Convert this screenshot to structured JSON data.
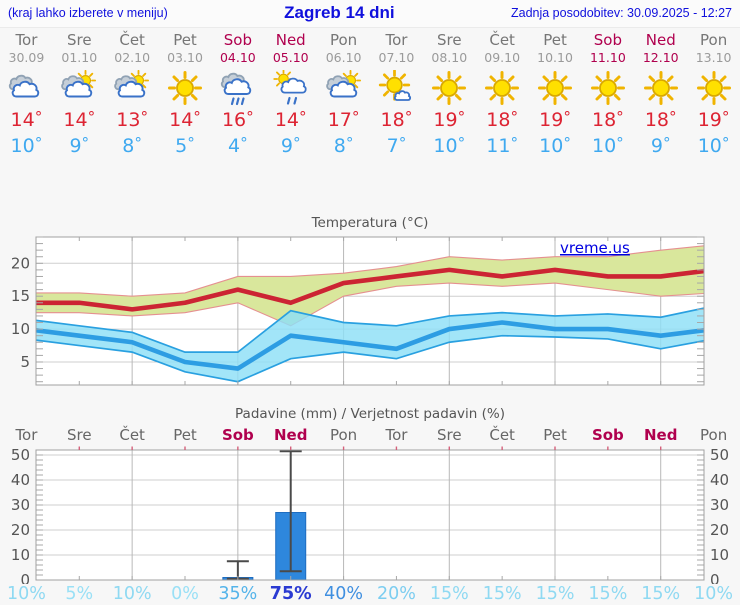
{
  "header": {
    "hint": "(kraj lahko izberete v meniju)",
    "title": "Zagreb 14 dni",
    "last_update": "Zadnja posodobitev: 30.09.2025 - 12:27"
  },
  "units": {
    "degree": "°"
  },
  "colors": {
    "header_blue": "#1010dd",
    "weekend_red": "#b0004e",
    "max_red": "#dd2433",
    "min_blue": "#3fa9f0",
    "bar_blue": "#2e87dd",
    "band_green": "#d9e79c",
    "band_cyan": "#8edff6"
  },
  "days": [
    {
      "name": "Tor",
      "date": "30.09",
      "weekend": false,
      "icon": "cloudy",
      "max": "14",
      "min": "10",
      "prob": "10%",
      "prob_color": "#8fd9f2",
      "prob_bold": false
    },
    {
      "name": "Sre",
      "date": "01.10",
      "weekend": false,
      "icon": "partly-cloudy",
      "max": "14",
      "min": "9",
      "prob": "5%",
      "prob_color": "#9ae0f6",
      "prob_bold": false
    },
    {
      "name": "Čet",
      "date": "02.10",
      "weekend": false,
      "icon": "partly-cloudy",
      "max": "13",
      "min": "8",
      "prob": "10%",
      "prob_color": "#8fd9f2",
      "prob_bold": false
    },
    {
      "name": "Pet",
      "date": "03.10",
      "weekend": false,
      "icon": "sunny",
      "max": "14",
      "min": "5",
      "prob": "0%",
      "prob_color": "#9ae0f6",
      "prob_bold": false
    },
    {
      "name": "Sob",
      "date": "04.10",
      "weekend": true,
      "icon": "rain",
      "max": "16",
      "min": "4",
      "prob": "35%",
      "prob_color": "#55b4ea",
      "prob_bold": false
    },
    {
      "name": "Ned",
      "date": "05.10",
      "weekend": true,
      "icon": "sun-shower",
      "max": "14",
      "min": "9",
      "prob": "75%",
      "prob_color": "#2a3ad2",
      "prob_bold": true
    },
    {
      "name": "Pon",
      "date": "06.10",
      "weekend": false,
      "icon": "partly-cloudy",
      "max": "17",
      "min": "8",
      "prob": "40%",
      "prob_color": "#3f8fe0",
      "prob_bold": false
    },
    {
      "name": "Tor",
      "date": "07.10",
      "weekend": false,
      "icon": "mostly-sunny",
      "max": "18",
      "min": "7",
      "prob": "20%",
      "prob_color": "#7ccdf0",
      "prob_bold": false
    },
    {
      "name": "Sre",
      "date": "08.10",
      "weekend": false,
      "icon": "sunny",
      "max": "19",
      "min": "10",
      "prob": "15%",
      "prob_color": "#8fd9f2",
      "prob_bold": false
    },
    {
      "name": "Čet",
      "date": "09.10",
      "weekend": false,
      "icon": "sunny",
      "max": "18",
      "min": "11",
      "prob": "15%",
      "prob_color": "#8fd9f2",
      "prob_bold": false
    },
    {
      "name": "Pet",
      "date": "10.10",
      "weekend": false,
      "icon": "sunny",
      "max": "19",
      "min": "10",
      "prob": "15%",
      "prob_color": "#8fd9f2",
      "prob_bold": false
    },
    {
      "name": "Sob",
      "date": "11.10",
      "weekend": true,
      "icon": "sunny",
      "max": "18",
      "min": "10",
      "prob": "15%",
      "prob_color": "#8fd9f2",
      "prob_bold": false
    },
    {
      "name": "Ned",
      "date": "12.10",
      "weekend": true,
      "icon": "sunny",
      "max": "18",
      "min": "9",
      "prob": "15%",
      "prob_color": "#8fd9f2",
      "prob_bold": false
    },
    {
      "name": "Pon",
      "date": "13.10",
      "weekend": false,
      "icon": "sunny",
      "max": "19",
      "min": "10",
      "prob": "10%",
      "prob_color": "#8fd9f2",
      "prob_bold": false
    }
  ],
  "chart_data": [
    {
      "type": "line",
      "title": "Temperatura (°C)",
      "watermark": "vreme.us",
      "x_labels": [
        "Tor",
        "Sre",
        "Čet",
        "Pet",
        "Sob",
        "Ned",
        "Pon",
        "Tor",
        "Sre",
        "Čet",
        "Pet",
        "Sob",
        "Ned",
        "Pon"
      ],
      "ylim": [
        1.5,
        24
      ],
      "yticks": [
        5,
        10,
        15,
        20
      ],
      "grid": "on",
      "series": [
        {
          "name": "max-temp",
          "color": "#cc2433",
          "band_color": "#d9e79c",
          "band_edge": "#e59090",
          "values": [
            14,
            14,
            13,
            14,
            16,
            14,
            17,
            18,
            19,
            18,
            19,
            18,
            18,
            19
          ],
          "upper": [
            15.5,
            15.5,
            15,
            15.5,
            18,
            18,
            18.5,
            19.5,
            21,
            20.5,
            21,
            21,
            22,
            22.8
          ],
          "lower": [
            12.5,
            12.5,
            12,
            12.5,
            14,
            10.5,
            15,
            16.5,
            17,
            16.5,
            17,
            16,
            15,
            15.5
          ]
        },
        {
          "name": "min-temp",
          "color": "#2d9de3",
          "band_color": "#8edff6",
          "band_edge": "#29a0e0",
          "values": [
            10,
            9,
            8,
            5,
            4,
            9,
            8,
            7,
            10,
            11,
            10,
            10,
            9,
            10
          ],
          "upper": [
            11.5,
            10.5,
            9.5,
            6.5,
            6.5,
            12.8,
            11,
            10.5,
            12,
            12.5,
            12,
            12.3,
            11.8,
            13.5
          ],
          "lower": [
            8.5,
            7.5,
            6.5,
            3.5,
            2,
            5.5,
            6.5,
            5.5,
            8,
            9,
            8.8,
            8.5,
            7,
            8.5
          ]
        }
      ]
    },
    {
      "type": "bar",
      "title": "Padavine (mm) / Verjetnost padavin (%)",
      "ylim": [
        0,
        52
      ],
      "yticks": [
        0,
        10,
        20,
        30,
        40,
        50
      ],
      "categories": [
        "Tor",
        "Sre",
        "Čet",
        "Pet",
        "Sob",
        "Ned",
        "Pon",
        "Tor",
        "Sre",
        "Čet",
        "Pet",
        "Sob",
        "Ned",
        "Pon"
      ],
      "values": [
        0,
        0,
        0,
        0,
        1,
        27,
        0,
        0,
        0,
        0,
        0,
        0,
        0,
        0
      ],
      "whiskers": [
        {
          "day": 4,
          "low": 0.5,
          "high": 7.5
        },
        {
          "day": 5,
          "low": 3.5,
          "high": 51.5
        }
      ],
      "probabilities": [
        "10%",
        "5%",
        "10%",
        "0%",
        "35%",
        "75%",
        "40%",
        "20%",
        "15%",
        "15%",
        "15%",
        "15%",
        "15%",
        "10%"
      ]
    }
  ]
}
